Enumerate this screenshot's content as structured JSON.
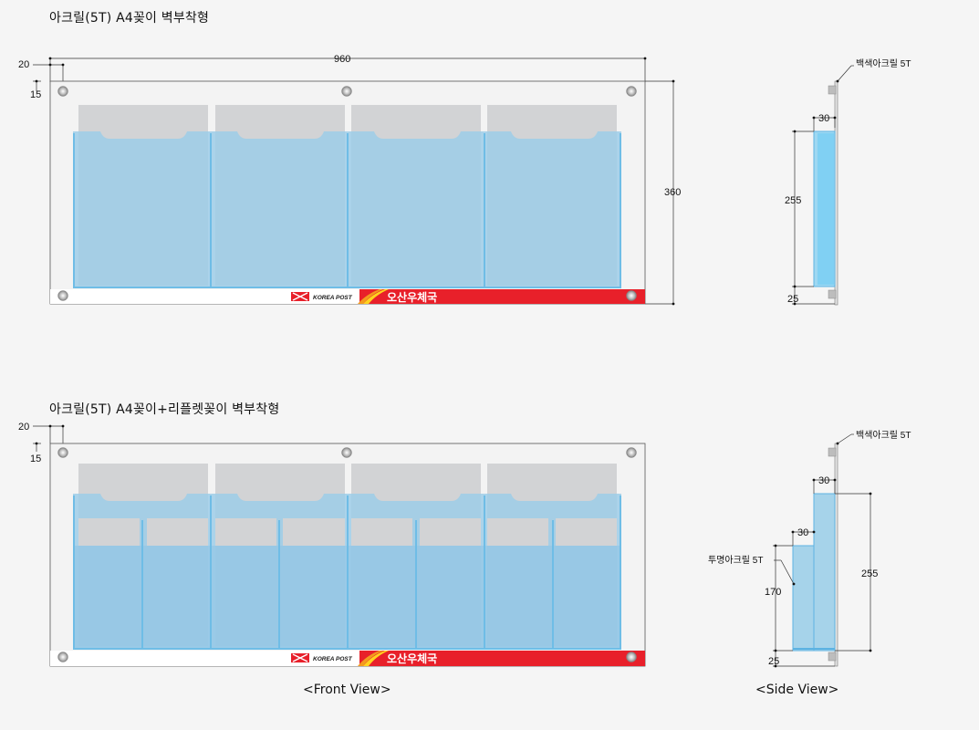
{
  "titles": {
    "top": "아크릴(5T) A4꽂이 벽부착형",
    "bottom": "아크릴(5T) A4꽂이+리플렛꽂이 벽부착형"
  },
  "captions": {
    "front": "<Front View>",
    "side": "<Side View>"
  },
  "front_dims": {
    "width": "960",
    "height": "360",
    "offset_top": "20",
    "offset_inner": "15"
  },
  "side_dims_top": {
    "label": "백색아크릴 5T",
    "depth": "30",
    "pocket_height": "255",
    "bottom": "25"
  },
  "side_dims_bottom": {
    "label": "백색아크릴 5T",
    "depth_rear": "30",
    "depth_front": "30",
    "front_label": "투명아크릴 5T",
    "front_height": "170",
    "rear_height": "255",
    "bottom": "25"
  },
  "strip": {
    "brand": "KOREA POST",
    "office": "오산우체국"
  },
  "colors": {
    "acrylic_blue": "#9ecde8",
    "pocket_gray": "#d2d3d5",
    "strip_red": "#e8202a",
    "edge_blue": "#5db3e2"
  }
}
